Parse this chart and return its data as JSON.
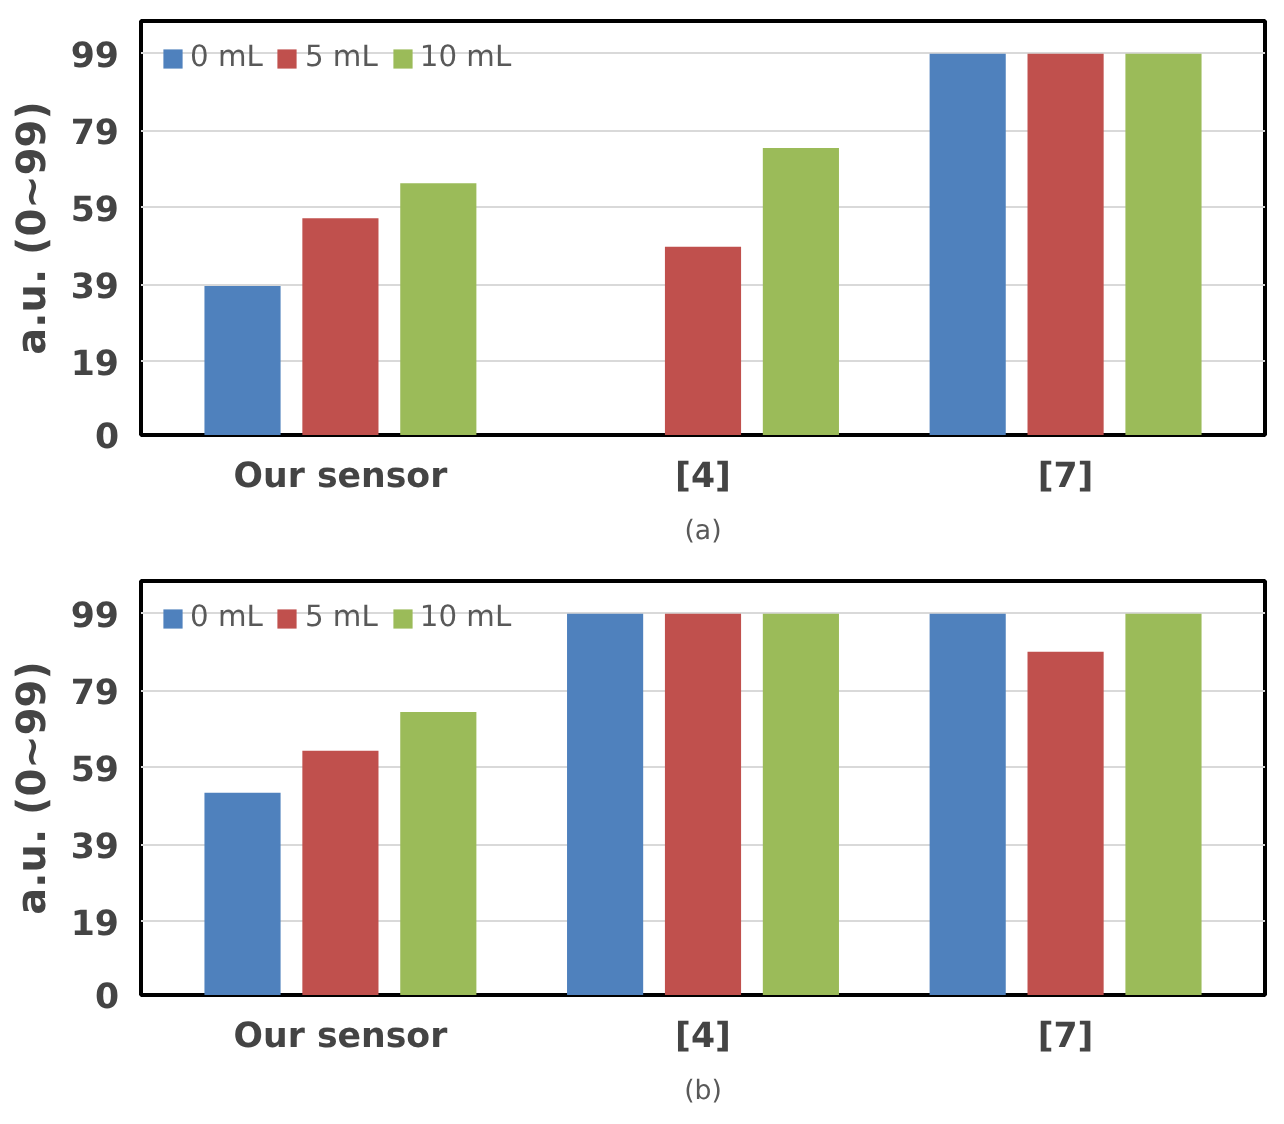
{
  "chart_data": [
    {
      "type": "bar",
      "ylabel": "a.u. (0~99)",
      "categories": [
        "Our sensor",
        "[4]",
        "[7]"
      ],
      "annotations": [
        "(a)"
      ],
      "ylim": [
        0,
        107.5
      ],
      "yticks": [
        0,
        19,
        39,
        59,
        79,
        99
      ],
      "grid": "y",
      "legend": "top left",
      "series": [
        {
          "name": "0 mL",
          "color": "#4f81bd",
          "values": [
            38.7,
            null,
            99
          ]
        },
        {
          "name": "5 mL",
          "color": "#c0504d",
          "values": [
            56.3,
            48.9,
            99
          ]
        },
        {
          "name": "10 mL",
          "color": "#9bbb59",
          "values": [
            65.4,
            74.5,
            99
          ]
        }
      ]
    },
    {
      "type": "bar",
      "ylabel": "a.u. (0~99)",
      "categories": [
        "Our sensor",
        "[4]",
        "[7]"
      ],
      "annotations": [
        "(b)"
      ],
      "ylim": [
        0,
        107.5
      ],
      "yticks": [
        0,
        19,
        39,
        59,
        79,
        99
      ],
      "grid": "y",
      "legend": "top left",
      "series": [
        {
          "name": "0 mL",
          "color": "#4f81bd",
          "values": [
            52.5,
            99,
            99
          ]
        },
        {
          "name": "5 mL",
          "color": "#c0504d",
          "values": [
            63.4,
            99,
            89.1
          ]
        },
        {
          "name": "10 mL",
          "color": "#9bbb59",
          "values": [
            73.5,
            99,
            99
          ]
        }
      ]
    }
  ]
}
